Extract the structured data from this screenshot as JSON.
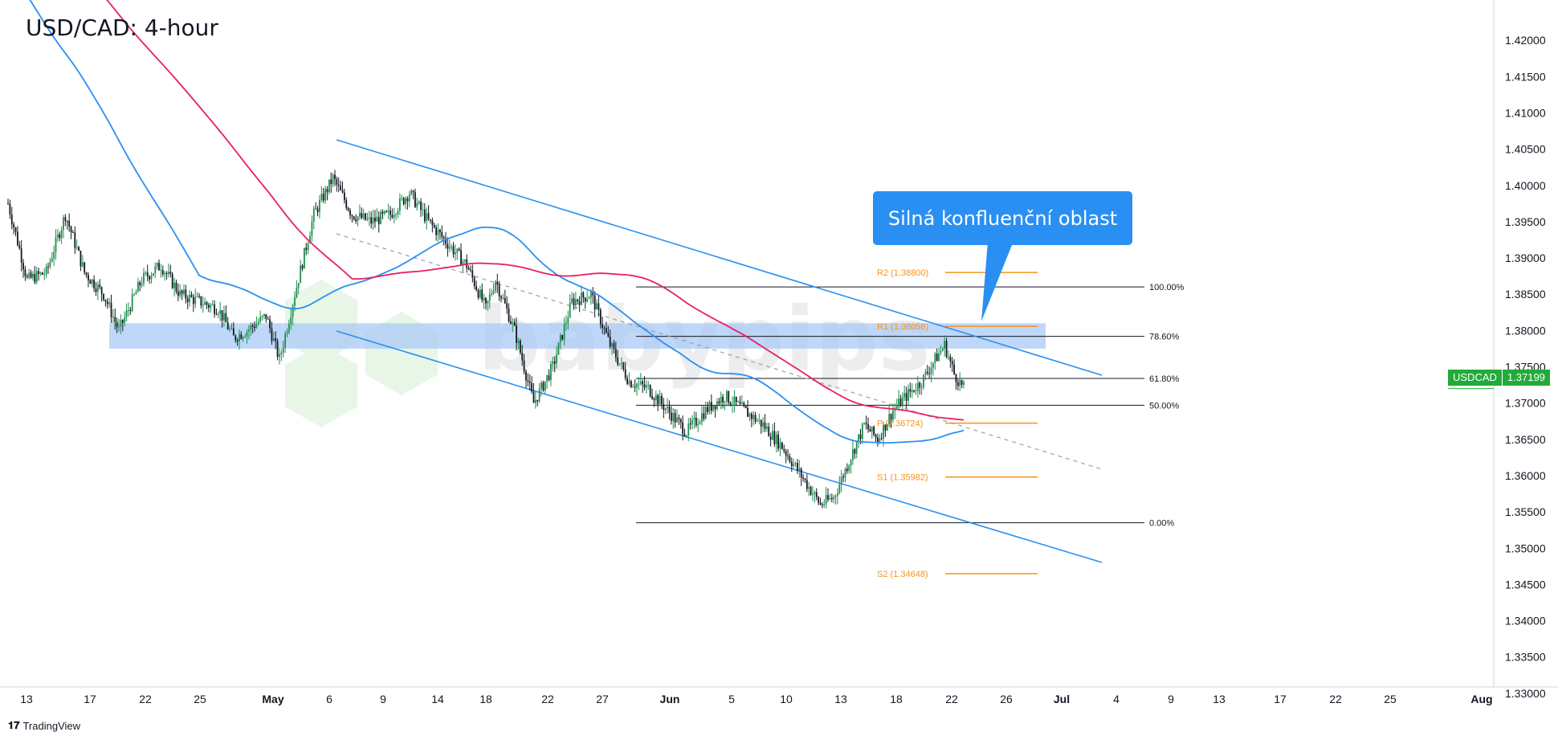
{
  "header": {
    "title": "USD/CAD: 4-hour"
  },
  "callout": {
    "text": "Silná konfluenční oblast"
  },
  "footer": {
    "brand": "TradingView",
    "logo": "tradingview-logo"
  },
  "price_badge": {
    "symbol": "USDCAD",
    "price": "1.37199",
    "color": "#22ab3a"
  },
  "colors": {
    "up_candle": "#1e8f4e",
    "down_candle": "#131722",
    "ma_fast": "#2a8ff2",
    "ma_slow": "#e91e63",
    "channel": "#2a8ff2",
    "zone": "#a9c9f5",
    "pivot": "#f7931a",
    "fib": "#131722"
  },
  "chart_data": {
    "type": "candlestick",
    "title": "USD/CAD: 4-hour",
    "ylim": [
      1.33,
      1.425
    ],
    "y_ticks": [
      "1.42000",
      "1.41500",
      "1.41000",
      "1.40500",
      "1.40000",
      "1.39500",
      "1.39000",
      "1.38500",
      "1.38000",
      "1.37500",
      "1.37000",
      "1.36500",
      "1.36000",
      "1.35500",
      "1.35000",
      "1.34500",
      "1.34000",
      "1.33500",
      "1.33000"
    ],
    "x_ticks": [
      "13",
      "17",
      "22",
      "25",
      "May",
      "6",
      "9",
      "14",
      "18",
      "22",
      "27",
      "Jun",
      "5",
      "10",
      "13",
      "18",
      "22",
      "26",
      "Jul",
      "4",
      "9",
      "13",
      "17",
      "22",
      "25",
      "Aug"
    ],
    "price_path": [
      [
        0,
        1.3975
      ],
      [
        10,
        1.387
      ],
      [
        20,
        1.388
      ],
      [
        30,
        1.396
      ],
      [
        40,
        1.388
      ],
      [
        50,
        1.385
      ],
      [
        58,
        1.38
      ],
      [
        70,
        1.387
      ],
      [
        80,
        1.389
      ],
      [
        90,
        1.385
      ],
      [
        100,
        1.384
      ],
      [
        110,
        1.383
      ],
      [
        118,
        1.379
      ],
      [
        125,
        1.38
      ],
      [
        135,
        1.382
      ],
      [
        142,
        1.376
      ],
      [
        150,
        1.385
      ],
      [
        160,
        1.396
      ],
      [
        170,
        1.401
      ],
      [
        180,
        1.396
      ],
      [
        190,
        1.395
      ],
      [
        200,
        1.396
      ],
      [
        210,
        1.399
      ],
      [
        220,
        1.395
      ],
      [
        230,
        1.392
      ],
      [
        240,
        1.389
      ],
      [
        250,
        1.383
      ],
      [
        255,
        1.387
      ],
      [
        265,
        1.38
      ],
      [
        275,
        1.37
      ],
      [
        285,
        1.375
      ],
      [
        295,
        1.384
      ],
      [
        305,
        1.385
      ],
      [
        315,
        1.378
      ],
      [
        325,
        1.373
      ],
      [
        335,
        1.372
      ],
      [
        345,
        1.369
      ],
      [
        355,
        1.366
      ],
      [
        365,
        1.369
      ],
      [
        375,
        1.371
      ],
      [
        385,
        1.369
      ],
      [
        395,
        1.367
      ],
      [
        405,
        1.364
      ],
      [
        415,
        1.36
      ],
      [
        425,
        1.356
      ],
      [
        432,
        1.357
      ],
      [
        440,
        1.362
      ],
      [
        448,
        1.367
      ],
      [
        455,
        1.365
      ],
      [
        463,
        1.369
      ],
      [
        470,
        1.371
      ],
      [
        478,
        1.373
      ],
      [
        485,
        1.376
      ],
      [
        490,
        1.378
      ],
      [
        495,
        1.374
      ],
      [
        500,
        1.372
      ]
    ],
    "fibonacci": [
      {
        "level": "100.00%",
        "price": 1.386
      },
      {
        "level": "78.60%",
        "price": 1.3792
      },
      {
        "level": "61.80%",
        "price": 1.3734
      },
      {
        "level": "50.00%",
        "price": 1.3697
      },
      {
        "level": "0.00%",
        "price": 1.3535
      }
    ],
    "pivots": [
      {
        "label": "R2 (1.38800)",
        "price": 1.388
      },
      {
        "label": "R1 (1.38058)",
        "price": 1.38058
      },
      {
        "label": "P (1.36724)",
        "price": 1.36724
      },
      {
        "label": "S1 (1.35982)",
        "price": 1.35982
      },
      {
        "label": "S2 (1.34648)",
        "price": 1.34648
      }
    ],
    "zone": {
      "from": 1.3775,
      "to": 1.381
    },
    "last_price": 1.37199
  }
}
